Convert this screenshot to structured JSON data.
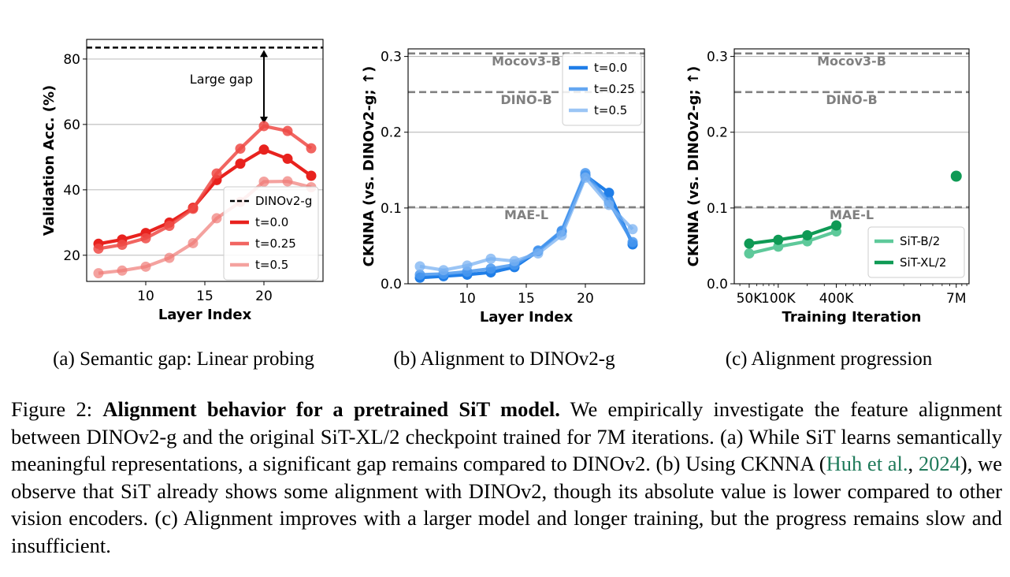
{
  "chart_data": [
    {
      "type": "line",
      "panel": "a",
      "xlabel": "Layer Index",
      "ylabel": "Validation Acc. (%)",
      "xlim": [
        5,
        25
      ],
      "ylim": [
        12,
        86
      ],
      "xticks": [
        10,
        15,
        20
      ],
      "yticks": [
        20,
        40,
        60,
        80
      ],
      "grid": "horizontal",
      "legend_position": "lower-right",
      "x": [
        6,
        8,
        10,
        12,
        14,
        16,
        18,
        20,
        22,
        24
      ],
      "reference": {
        "name": "DINOv2-g",
        "value": 83.5,
        "color": "#000000"
      },
      "annotation": {
        "text": "Large gap",
        "x": 20,
        "from": 83.5,
        "to": 59.5
      },
      "series": [
        {
          "name": "t=0.0",
          "color": "#e8221e",
          "opacity": 1.0,
          "values": [
            23.5,
            24.8,
            26.8,
            30.0,
            34.5,
            43.0,
            48.0,
            52.3,
            49.5,
            44.3
          ]
        },
        {
          "name": "t=0.25",
          "color": "#ee4a45",
          "opacity": 0.85,
          "values": [
            22.0,
            23.2,
            25.2,
            29.0,
            34.2,
            45.0,
            52.6,
            59.5,
            58.0,
            52.7
          ]
        },
        {
          "name": "t=0.5",
          "color": "#f07a76",
          "opacity": 0.7,
          "values": [
            14.5,
            15.3,
            16.5,
            19.2,
            23.7,
            31.3,
            36.3,
            42.5,
            42.6,
            40.8
          ]
        }
      ],
      "caption": "(a) Semantic gap: Linear probing"
    },
    {
      "type": "line",
      "panel": "b",
      "xlabel": "Layer Index",
      "ylabel": "CKNNA (vs. DINOv2-g; ↑)",
      "xlim": [
        5,
        25
      ],
      "ylim": [
        0.0,
        0.31
      ],
      "xticks": [
        10,
        15,
        20
      ],
      "yticks": [
        0.0,
        0.1,
        0.2,
        0.3
      ],
      "grid": "horizontal",
      "legend_position": "top-right",
      "x": [
        6,
        8,
        10,
        12,
        14,
        16,
        18,
        20,
        22,
        24
      ],
      "references": [
        {
          "name": "Mocov3-B",
          "value": 0.304
        },
        {
          "name": "DINO-B",
          "value": 0.253
        },
        {
          "name": "MAE-L",
          "value": 0.101
        }
      ],
      "series": [
        {
          "name": "t=0.0",
          "color": "#1f7ee8",
          "opacity": 1.0,
          "values": [
            0.008,
            0.01,
            0.012,
            0.015,
            0.022,
            0.043,
            0.069,
            0.143,
            0.12,
            0.052
          ]
        },
        {
          "name": "t=0.25",
          "color": "#4a98ee",
          "opacity": 0.85,
          "values": [
            0.012,
            0.013,
            0.016,
            0.02,
            0.025,
            0.044,
            0.07,
            0.146,
            0.108,
            0.055
          ]
        },
        {
          "name": "t=0.5",
          "color": "#7ab2f2",
          "opacity": 0.75,
          "values": [
            0.023,
            0.018,
            0.024,
            0.033,
            0.03,
            0.04,
            0.064,
            0.14,
            0.104,
            0.072
          ]
        }
      ],
      "caption": "(b) Alignment to DINOv2-g"
    },
    {
      "type": "line",
      "panel": "c",
      "xlabel": "Training Iteration",
      "ylabel": "CKNNA (vs. DINOv2-g; ↑)",
      "ylim": [
        0.0,
        0.31
      ],
      "xscale": "log",
      "xticks": [
        "50K",
        "100K",
        "400K",
        "7M"
      ],
      "yticks": [
        0.0,
        0.1,
        0.2,
        0.3
      ],
      "grid": "horizontal",
      "legend_position": "lower-right",
      "references": [
        {
          "name": "Mocov3-B",
          "value": 0.304
        },
        {
          "name": "DINO-B",
          "value": 0.253
        },
        {
          "name": "MAE-L",
          "value": 0.101
        }
      ],
      "series": [
        {
          "name": "SiT-B/2",
          "color": "#5ec99a",
          "x": [
            50000,
            100000,
            200000,
            400000
          ],
          "values": [
            0.04,
            0.049,
            0.056,
            0.069
          ]
        },
        {
          "name": "SiT-XL/2",
          "color": "#0f9a55",
          "x": [
            50000,
            100000,
            200000,
            400000
          ],
          "values": [
            0.053,
            0.058,
            0.064,
            0.077
          ]
        },
        {
          "name": "SiT-XL/2 (7M)",
          "color": "#0f9a55",
          "x": [
            7000000
          ],
          "values": [
            0.142
          ]
        }
      ],
      "caption": "(c) Alignment progression"
    }
  ],
  "caption": {
    "label": "Figure 2:",
    "title": "Alignment behavior for a pretrained SiT model.",
    "text1": " We empirically investigate the feature alignment between DINOv2-g and the original SiT-XL/2 checkpoint trained for 7M iterations. (a) While SiT learns semantically meaningful representations, a significant gap remains compared to DINOv2. (b) Using CKNNA (",
    "cite_author": "Huh et al.",
    "cite_sep": ", ",
    "cite_year": "2024",
    "text2": "), we observe that SiT already shows some alignment with DINOv2, though its absolute value is lower compared to other vision encoders. (c) Alignment improves with a larger model and longer training, but the progress remains slow and insufficient."
  }
}
